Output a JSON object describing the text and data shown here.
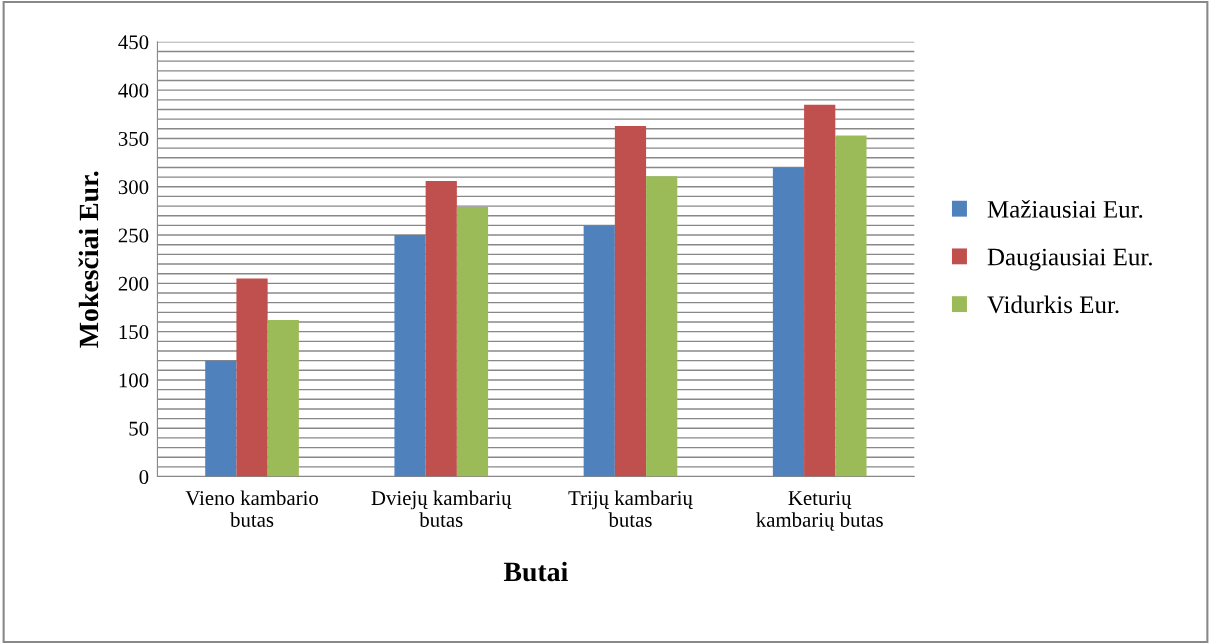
{
  "chart_data": {
    "type": "bar",
    "xlabel": "Butai",
    "ylabel": "Mokesčiai Eur.",
    "categories": [
      "Vieno kambario\nbutas",
      "Dviejų kambarių\nbutas",
      "Trijų kambarių\nbutas",
      "Keturių\nkambarių butas"
    ],
    "series": [
      {
        "name": "Mažiausiai Eur.",
        "color": "#4f81bd",
        "values": [
          120,
          250,
          260,
          320
        ]
      },
      {
        "name": "Daugiausiai Eur.",
        "color": "#c0504d",
        "values": [
          205,
          306,
          363,
          385
        ]
      },
      {
        "name": "Vidurkis Eur.",
        "color": "#9bbb59",
        "values": [
          162,
          279,
          311,
          353
        ]
      }
    ],
    "ylim": [
      0,
      450
    ],
    "yticks": [
      0,
      {
        "value": 10,
        "label": null
      },
      {
        "value": 20,
        "label": null
      },
      {
        "value": 30,
        "label": null
      },
      {
        "value": 40,
        "label": null
      },
      50,
      {
        "value": 60,
        "label": null
      },
      {
        "value": 70,
        "label": null
      },
      {
        "value": 80,
        "label": null
      },
      {
        "value": 90,
        "label": null
      },
      100,
      {
        "value": 110,
        "label": null
      },
      {
        "value": 120,
        "label": null
      },
      {
        "value": 130,
        "label": null
      },
      {
        "value": 140,
        "label": null
      },
      150,
      {
        "value": 160,
        "label": null
      },
      {
        "value": 170,
        "label": null
      },
      {
        "value": 180,
        "label": null
      },
      {
        "value": 190,
        "label": null
      },
      200,
      {
        "value": 210,
        "label": null
      },
      {
        "value": 220,
        "label": null
      },
      {
        "value": 230,
        "label": null
      },
      {
        "value": 240,
        "label": null
      },
      250,
      {
        "value": 260,
        "label": null
      },
      {
        "value": 270,
        "label": null
      },
      {
        "value": 280,
        "label": null
      },
      {
        "value": 290,
        "label": null
      },
      300,
      {
        "value": 310,
        "label": null
      },
      {
        "value": 320,
        "label": null
      },
      {
        "value": 330,
        "label": null
      },
      {
        "value": 340,
        "label": null
      },
      350,
      {
        "value": 360,
        "label": null
      },
      {
        "value": 370,
        "label": null
      },
      {
        "value": 380,
        "label": null
      },
      {
        "value": 390,
        "label": null
      },
      400,
      {
        "value": 410,
        "label": null
      },
      {
        "value": 420,
        "label": null
      },
      {
        "value": 430,
        "label": null
      },
      {
        "value": 440,
        "label": null
      },
      450
    ],
    "grid": "y",
    "legend": "right"
  }
}
